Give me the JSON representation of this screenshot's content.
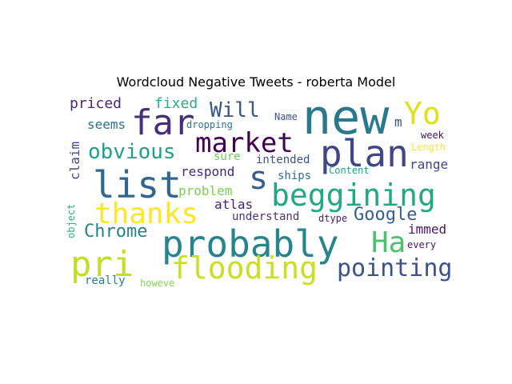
{
  "chart_data": {
    "type": "wordcloud",
    "title": "Wordcloud Negative Tweets - roberta Model",
    "words": [
      {
        "text": "new",
        "color": "#2a788e",
        "weight": 1.0
      },
      {
        "text": "probably",
        "color": "#25858e",
        "weight": 0.96
      },
      {
        "text": "list",
        "color": "#31668e",
        "weight": 0.9
      },
      {
        "text": "plan",
        "color": "#3f4788",
        "weight": 0.9
      },
      {
        "text": "pri",
        "color": "#c2df23",
        "weight": 0.86
      },
      {
        "text": "flooding",
        "color": "#c8e020",
        "weight": 0.86
      },
      {
        "text": "far",
        "color": "#472d7b",
        "weight": 0.85
      },
      {
        "text": "beggining",
        "color": "#22a884",
        "weight": 0.8
      },
      {
        "text": "Yo",
        "color": "#dde318",
        "weight": 0.78
      },
      {
        "text": "Ha",
        "color": "#4ac16d",
        "weight": 0.72
      },
      {
        "text": "thanks",
        "color": "#fde725",
        "weight": 0.7
      },
      {
        "text": "market",
        "color": "#440154",
        "weight": 0.68
      },
      {
        "text": "s",
        "color": "#355f8d",
        "weight": 0.65
      },
      {
        "text": "pointing",
        "color": "#3b528b",
        "weight": 0.63
      },
      {
        "text": "obvious",
        "color": "#1fa187",
        "weight": 0.55
      },
      {
        "text": "Will",
        "color": "#39568c",
        "weight": 0.55
      },
      {
        "text": "Chrome",
        "color": "#26828e",
        "weight": 0.53
      },
      {
        "text": "Google",
        "color": "#35608d",
        "weight": 0.5
      },
      {
        "text": "priced",
        "color": "#482878",
        "weight": 0.4
      },
      {
        "text": "fixed",
        "color": "#29af7f",
        "weight": 0.38
      },
      {
        "text": "seems",
        "color": "#2d708e",
        "weight": 0.36
      },
      {
        "text": "claim",
        "color": "#3e4a89",
        "weight": 0.35
      },
      {
        "text": "respond",
        "color": "#482677",
        "weight": 0.36
      },
      {
        "text": "problem",
        "color": "#7ad151",
        "weight": 0.36
      },
      {
        "text": "range",
        "color": "#414487",
        "weight": 0.36
      },
      {
        "text": "immed",
        "color": "#481668",
        "weight": 0.36
      },
      {
        "text": "atlas",
        "color": "#482173",
        "weight": 0.35
      },
      {
        "text": "m",
        "color": "#39558c",
        "weight": 0.34
      },
      {
        "text": "intended",
        "color": "#3b518b",
        "weight": 0.32
      },
      {
        "text": "understand",
        "color": "#46337e",
        "weight": 0.32
      },
      {
        "text": "ships",
        "color": "#2e6f8e",
        "weight": 0.32
      },
      {
        "text": "sure",
        "color": "#6ccd5a",
        "weight": 0.32
      },
      {
        "text": "really",
        "color": "#287c8e",
        "weight": 0.3
      },
      {
        "text": "dropping",
        "color": "#2c738e",
        "weight": 0.25
      },
      {
        "text": "Name",
        "color": "#3b528b",
        "weight": 0.24
      },
      {
        "text": "week",
        "color": "#470e61",
        "weight": 0.24
      },
      {
        "text": "Length",
        "color": "#fbe723",
        "weight": 0.24
      },
      {
        "text": "Content",
        "color": "#20a386",
        "weight": 0.24
      },
      {
        "text": "dtype",
        "color": "#481b6d",
        "weight": 0.24
      },
      {
        "text": "every",
        "color": "#471365",
        "weight": 0.24
      },
      {
        "text": "howeve",
        "color": "#86d549",
        "weight": 0.24
      },
      {
        "text": "object",
        "color": "#2db27d",
        "weight": 0.22
      }
    ]
  }
}
